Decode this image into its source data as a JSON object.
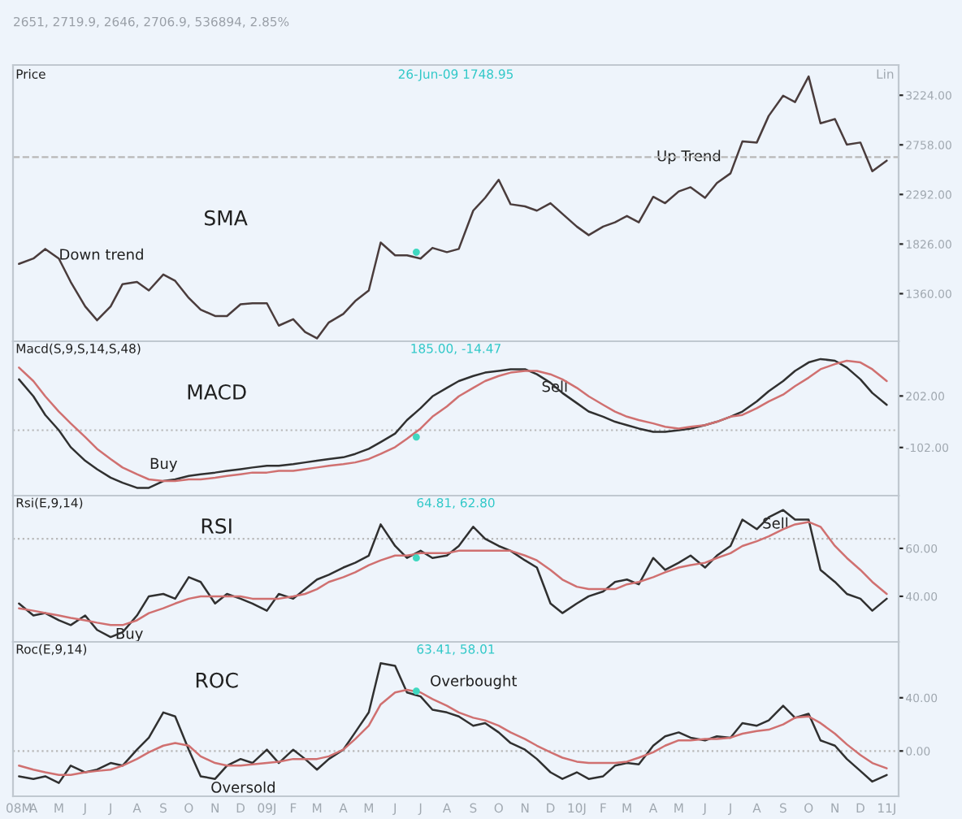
{
  "chart_data": [
    {
      "type": "line",
      "title": "Price",
      "subtitle": "26-Jun-09 1748.95",
      "annotations": [
        "2651, 2719.9, 2646, 2706.9, 536894, 2.85%",
        "Lin",
        "SMA",
        "Down trend",
        {
          "text": "Up Trend",
          "x": "2010-05-13",
          "y": 2643
        }
      ],
      "x": [
        "2008-03-15",
        "2008-04-01",
        "2008-04-15",
        "2008-05-01",
        "2008-05-15",
        "2008-06-01",
        "2008-06-15",
        "2008-07-01",
        "2008-07-15",
        "2008-08-01",
        "2008-08-15",
        "2008-09-01",
        "2008-09-15",
        "2008-10-01",
        "2008-10-15",
        "2008-11-01",
        "2008-11-15",
        "2008-12-01",
        "2008-12-15",
        "2009-01-01",
        "2009-01-15",
        "2009-02-01",
        "2009-02-15",
        "2009-03-01",
        "2009-03-15",
        "2009-04-01",
        "2009-04-15",
        "2009-05-01",
        "2009-05-15",
        "2009-06-01",
        "2009-06-15",
        "2009-07-01",
        "2009-07-15",
        "2009-08-01",
        "2009-08-15",
        "2009-09-01",
        "2009-09-15",
        "2009-10-01",
        "2009-10-15",
        "2009-11-01",
        "2009-11-15",
        "2009-12-01",
        "2009-12-15",
        "2010-01-01",
        "2010-01-15",
        "2010-02-01",
        "2010-02-15",
        "2010-03-01",
        "2010-03-15",
        "2010-04-01",
        "2010-04-15",
        "2010-05-01",
        "2010-05-15",
        "2010-06-01",
        "2010-06-15",
        "2010-07-01",
        "2010-07-15",
        "2010-08-01",
        "2010-08-15",
        "2010-09-01",
        "2010-09-15",
        "2010-10-01",
        "2010-10-15",
        "2010-11-01",
        "2010-11-15",
        "2010-12-01",
        "2010-12-15",
        "2011-01-01"
      ],
      "series": [
        {
          "color": "#4a3c3c",
          "values": [
            1640,
            1690,
            1780,
            1690,
            1470,
            1240,
            1110,
            1240,
            1450,
            1470,
            1390,
            1540,
            1480,
            1320,
            1210,
            1150,
            1150,
            1260,
            1270,
            1270,
            1060,
            1120,
            1000,
            940,
            1090,
            1170,
            1290,
            1390,
            1840,
            1720,
            1720,
            1690,
            1790,
            1750,
            1780,
            2140,
            2260,
            2430,
            2200,
            2180,
            2140,
            2210,
            2110,
            1990,
            1910,
            1990,
            2030,
            2090,
            2030,
            2270,
            2210,
            2320,
            2360,
            2260,
            2400,
            2490,
            2790,
            2780,
            3030,
            3220,
            3160,
            3400,
            2960,
            3000,
            2760,
            2780,
            2510,
            2610
          ]
        },
        {
          "type": "scatter",
          "color": "#40d8c0",
          "x": [
            "2009-06-26"
          ],
          "values": [
            1750
          ]
        }
      ],
      "xlim": [
        "2008-03-08",
        "2011-01-15"
      ],
      "ylim": [
        913,
        3508
      ],
      "yticks": [
        {
          "value": 1360,
          "label": "1360.00"
        },
        {
          "value": 1826,
          "label": "1826.00"
        },
        {
          "value": 2292,
          "label": "2292.00"
        },
        {
          "value": 2758,
          "label": "2758.00"
        },
        {
          "value": 3224,
          "label": "3224.00"
        }
      ],
      "ref_lines": [
        {
          "axis": "y",
          "value": 2643,
          "line_style": "dashed",
          "color": "#b8b8b8"
        }
      ],
      "tick_labels": "y"
    },
    {
      "type": "line",
      "title": "Macd(S,9,S,14,S,48)",
      "subtitle": "185.00, -14.47",
      "annotations": [
        "MACD",
        "Buy",
        {
          "text": "Sell",
          "x": "2009-12-06",
          "y": 251
        }
      ],
      "x": [
        "2008-03-15",
        "2008-04-01",
        "2008-04-15",
        "2008-05-01",
        "2008-05-15",
        "2008-06-01",
        "2008-06-15",
        "2008-07-01",
        "2008-07-15",
        "2008-08-01",
        "2008-08-15",
        "2008-09-01",
        "2008-09-15",
        "2008-10-01",
        "2008-10-15",
        "2008-11-01",
        "2008-11-15",
        "2008-12-01",
        "2008-12-15",
        "2009-01-01",
        "2009-01-15",
        "2009-02-01",
        "2009-02-15",
        "2009-03-01",
        "2009-03-15",
        "2009-04-01",
        "2009-04-15",
        "2009-05-01",
        "2009-05-15",
        "2009-06-01",
        "2009-06-15",
        "2009-07-01",
        "2009-07-15",
        "2009-08-01",
        "2009-08-15",
        "2009-09-01",
        "2009-09-15",
        "2009-10-01",
        "2009-10-15",
        "2009-11-01",
        "2009-11-15",
        "2009-12-01",
        "2009-12-15",
        "2010-01-01",
        "2010-01-15",
        "2010-02-01",
        "2010-02-15",
        "2010-03-01",
        "2010-03-15",
        "2010-04-01",
        "2010-04-15",
        "2010-05-01",
        "2010-05-15",
        "2010-06-01",
        "2010-06-15",
        "2010-07-01",
        "2010-07-15",
        "2010-08-01",
        "2010-08-15",
        "2010-09-01",
        "2010-09-15",
        "2010-10-01",
        "2010-10-15",
        "2010-11-01",
        "2010-11-15",
        "2010-12-01",
        "2010-12-15",
        "2011-01-01"
      ],
      "series": [
        {
          "color": "#303030",
          "values": [
            300,
            200,
            90,
            0,
            -100,
            -180,
            -230,
            -280,
            -310,
            -340,
            -340,
            -300,
            -290,
            -270,
            -260,
            -250,
            -240,
            -230,
            -220,
            -210,
            -210,
            -200,
            -190,
            -180,
            -170,
            -160,
            -140,
            -110,
            -70,
            -20,
            60,
            130,
            200,
            250,
            290,
            320,
            340,
            350,
            360,
            360,
            330,
            280,
            220,
            160,
            110,
            80,
            50,
            30,
            10,
            -10,
            -10,
            0,
            10,
            30,
            50,
            80,
            110,
            170,
            230,
            290,
            350,
            400,
            420,
            410,
            370,
            300,
            220,
            150
          ]
        },
        {
          "color": "#d07070",
          "values": [
            370,
            290,
            200,
            110,
            40,
            -40,
            -110,
            -170,
            -220,
            -260,
            -290,
            -300,
            -300,
            -290,
            -290,
            -280,
            -270,
            -260,
            -250,
            -250,
            -240,
            -240,
            -230,
            -220,
            -210,
            -200,
            -190,
            -170,
            -140,
            -100,
            -50,
            10,
            80,
            140,
            200,
            250,
            290,
            320,
            340,
            350,
            350,
            330,
            300,
            250,
            200,
            150,
            110,
            80,
            60,
            40,
            20,
            10,
            20,
            30,
            50,
            80,
            90,
            130,
            170,
            210,
            260,
            310,
            360,
            390,
            410,
            400,
            360,
            290
          ]
        },
        {
          "type": "scatter",
          "color": "#40d8c0",
          "x": [
            "2009-06-26"
          ],
          "values": [
            -40
          ]
        }
      ],
      "xlim": [
        "2008-03-08",
        "2011-01-15"
      ],
      "ylim": [
        -386,
        525
      ],
      "yticks": [
        {
          "value": -102,
          "label": "-102.00"
        },
        {
          "value": 202,
          "label": "202.00"
        }
      ],
      "ref_lines": [
        {
          "axis": "y",
          "value": 0,
          "line_style": "dotted",
          "color": "#b8b8b8"
        }
      ],
      "tick_labels": "y"
    },
    {
      "type": "line",
      "title": "Rsi(E,9,14)",
      "subtitle": "64.81, 62.80",
      "annotations": [
        "RSI",
        {
          "text": "Buy",
          "x": "2008-07-23",
          "y": 24
        },
        {
          "text": "Sell",
          "x": "2010-08-23",
          "y": 70
        }
      ],
      "x": [
        "2008-03-15",
        "2008-04-01",
        "2008-04-15",
        "2008-05-01",
        "2008-05-15",
        "2008-06-01",
        "2008-06-15",
        "2008-07-01",
        "2008-07-15",
        "2008-08-01",
        "2008-08-15",
        "2008-09-01",
        "2008-09-15",
        "2008-10-01",
        "2008-10-15",
        "2008-11-01",
        "2008-11-15",
        "2008-12-01",
        "2008-12-15",
        "2009-01-01",
        "2009-01-15",
        "2009-02-01",
        "2009-02-15",
        "2009-03-01",
        "2009-03-15",
        "2009-04-01",
        "2009-04-15",
        "2009-05-01",
        "2009-05-15",
        "2009-06-01",
        "2009-06-15",
        "2009-07-01",
        "2009-07-15",
        "2009-08-01",
        "2009-08-15",
        "2009-09-01",
        "2009-09-15",
        "2009-10-01",
        "2009-10-15",
        "2009-11-01",
        "2009-11-15",
        "2009-12-01",
        "2009-12-15",
        "2010-01-01",
        "2010-01-15",
        "2010-02-01",
        "2010-02-15",
        "2010-03-01",
        "2010-03-15",
        "2010-04-01",
        "2010-04-15",
        "2010-05-01",
        "2010-05-15",
        "2010-06-01",
        "2010-06-15",
        "2010-07-01",
        "2010-07-15",
        "2010-08-01",
        "2010-08-15",
        "2010-09-01",
        "2010-09-15",
        "2010-10-01",
        "2010-10-15",
        "2010-11-01",
        "2010-11-15",
        "2010-12-01",
        "2010-12-15",
        "2011-01-01"
      ],
      "series": [
        {
          "color": "#303030",
          "values": [
            37,
            32,
            33,
            30,
            28,
            32,
            26,
            23,
            25,
            32,
            40,
            41,
            39,
            48,
            46,
            37,
            41,
            39,
            37,
            34,
            41,
            39,
            43,
            47,
            49,
            52,
            54,
            57,
            70,
            61,
            56,
            59,
            56,
            57,
            61,
            69,
            64,
            61,
            59,
            55,
            52,
            37,
            33,
            37,
            40,
            42,
            46,
            47,
            45,
            56,
            51,
            54,
            57,
            52,
            57,
            61,
            72,
            68,
            73,
            76,
            72,
            72,
            51,
            46,
            41,
            39,
            34,
            39
          ]
        },
        {
          "color": "#d07070",
          "values": [
            35,
            34,
            33,
            32,
            31,
            30,
            29,
            28,
            28,
            30,
            33,
            35,
            37,
            39,
            40,
            40,
            40,
            40,
            39,
            39,
            39,
            40,
            41,
            43,
            46,
            48,
            50,
            53,
            55,
            57,
            57,
            58,
            58,
            58,
            59,
            59,
            59,
            59,
            59,
            57,
            55,
            51,
            47,
            44,
            43,
            43,
            43,
            45,
            46,
            48,
            50,
            52,
            53,
            54,
            56,
            58,
            61,
            63,
            65,
            68,
            70,
            71,
            69,
            61,
            56,
            51,
            46,
            41
          ]
        },
        {
          "type": "scatter",
          "color": "#40d8c0",
          "x": [
            "2009-06-26"
          ],
          "values": [
            56
          ]
        }
      ],
      "xlim": [
        "2008-03-08",
        "2011-01-15"
      ],
      "ylim": [
        21,
        82
      ],
      "yticks": [
        {
          "value": 40,
          "label": "40.00"
        },
        {
          "value": 60,
          "label": "60.00"
        }
      ],
      "ref_lines": [
        {
          "axis": "y",
          "value": 64,
          "line_style": "dotted",
          "color": "#b8b8b8"
        }
      ],
      "tick_labels": "y"
    },
    {
      "type": "line",
      "title": "Roc(E,9,14)",
      "subtitle": "63.41, 58.01",
      "annotations": [
        "ROC",
        "Overbought",
        "Oversold"
      ],
      "x": [
        "2008-03-15",
        "2008-04-01",
        "2008-04-15",
        "2008-05-01",
        "2008-05-15",
        "2008-06-01",
        "2008-06-15",
        "2008-07-01",
        "2008-07-15",
        "2008-08-01",
        "2008-08-15",
        "2008-09-01",
        "2008-09-15",
        "2008-10-01",
        "2008-10-15",
        "2008-11-01",
        "2008-11-15",
        "2008-12-01",
        "2008-12-15",
        "2009-01-01",
        "2009-01-15",
        "2009-02-01",
        "2009-02-15",
        "2009-03-01",
        "2009-03-15",
        "2009-04-01",
        "2009-04-15",
        "2009-05-01",
        "2009-05-15",
        "2009-06-01",
        "2009-06-15",
        "2009-07-01",
        "2009-07-15",
        "2009-08-01",
        "2009-08-15",
        "2009-09-01",
        "2009-09-15",
        "2009-10-01",
        "2009-10-15",
        "2009-11-01",
        "2009-11-15",
        "2009-12-01",
        "2009-12-15",
        "2010-01-01",
        "2010-01-15",
        "2010-02-01",
        "2010-02-15",
        "2010-03-01",
        "2010-03-15",
        "2010-04-01",
        "2010-04-15",
        "2010-05-01",
        "2010-05-15",
        "2010-06-01",
        "2010-06-15",
        "2010-07-01",
        "2010-07-15",
        "2010-08-01",
        "2010-08-15",
        "2010-09-01",
        "2010-09-15",
        "2010-10-01",
        "2010-10-15",
        "2010-11-01",
        "2010-11-15",
        "2010-12-01",
        "2010-12-15",
        "2011-01-01"
      ],
      "series": [
        {
          "color": "#303030",
          "values": [
            -19,
            -21,
            -19,
            -24,
            -11,
            -16,
            -14,
            -9,
            -11,
            1,
            10,
            29,
            26,
            1,
            -19,
            -21,
            -11,
            -6,
            -9,
            1,
            -9,
            1,
            -6,
            -14,
            -6,
            1,
            14,
            29,
            66,
            64,
            44,
            41,
            31,
            29,
            26,
            19,
            21,
            14,
            6,
            1,
            -6,
            -16,
            -21,
            -16,
            -21,
            -19,
            -11,
            -9,
            -10,
            4,
            11,
            14,
            10,
            8,
            11,
            10,
            21,
            19,
            23,
            34,
            25,
            28,
            8,
            4,
            -6,
            -15,
            -23,
            -18
          ]
        },
        {
          "color": "#d07070",
          "values": [
            -11,
            -14,
            -16,
            -18,
            -18,
            -16,
            -15,
            -14,
            -11,
            -6,
            -1,
            4,
            6,
            4,
            -4,
            -9,
            -11,
            -11,
            -10,
            -9,
            -8,
            -6,
            -6,
            -6,
            -4,
            1,
            9,
            19,
            35,
            44,
            46,
            44,
            39,
            34,
            29,
            25,
            23,
            19,
            14,
            9,
            4,
            -1,
            -5,
            -8,
            -9,
            -9,
            -9,
            -8,
            -5,
            -1,
            4,
            8,
            8,
            9,
            9,
            10,
            13,
            15,
            16,
            20,
            25,
            26,
            21,
            13,
            5,
            -3,
            -9,
            -13
          ]
        },
        {
          "type": "scatter",
          "color": "#40d8c0",
          "x": [
            "2009-06-26"
          ],
          "values": [
            45
          ]
        }
      ],
      "xlim": [
        "2008-03-08",
        "2011-01-15"
      ],
      "ylim": [
        -34,
        82
      ],
      "yticks": [
        {
          "value": 0,
          "label": "0.00"
        },
        {
          "value": 40,
          "label": "40.00"
        }
      ],
      "xticks": [
        {
          "value": "2008-03-15",
          "label": "08M"
        },
        {
          "value": "2008-04-01",
          "label": "A"
        },
        {
          "value": "2008-05-01",
          "label": "M"
        },
        {
          "value": "2008-06-01",
          "label": "J"
        },
        {
          "value": "2008-07-01",
          "label": "J"
        },
        {
          "value": "2008-08-01",
          "label": "A"
        },
        {
          "value": "2008-09-01",
          "label": "S"
        },
        {
          "value": "2008-10-01",
          "label": "O"
        },
        {
          "value": "2008-11-01",
          "label": "N"
        },
        {
          "value": "2008-12-01",
          "label": "D"
        },
        {
          "value": "2009-01-01",
          "label": "09J"
        },
        {
          "value": "2009-02-01",
          "label": "F"
        },
        {
          "value": "2009-03-01",
          "label": "M"
        },
        {
          "value": "2009-04-01",
          "label": "A"
        },
        {
          "value": "2009-05-01",
          "label": "M"
        },
        {
          "value": "2009-06-01",
          "label": "J"
        },
        {
          "value": "2009-07-01",
          "label": "J"
        },
        {
          "value": "2009-08-01",
          "label": "A"
        },
        {
          "value": "2009-09-01",
          "label": "S"
        },
        {
          "value": "2009-10-01",
          "label": "O"
        },
        {
          "value": "2009-11-01",
          "label": "N"
        },
        {
          "value": "2009-12-01",
          "label": "D"
        },
        {
          "value": "2010-01-01",
          "label": "10J"
        },
        {
          "value": "2010-02-01",
          "label": "F"
        },
        {
          "value": "2010-03-01",
          "label": "M"
        },
        {
          "value": "2010-04-01",
          "label": "A"
        },
        {
          "value": "2010-05-01",
          "label": "M"
        },
        {
          "value": "2010-06-01",
          "label": "J"
        },
        {
          "value": "2010-07-01",
          "label": "J"
        },
        {
          "value": "2010-08-01",
          "label": "A"
        },
        {
          "value": "2010-09-01",
          "label": "S"
        },
        {
          "value": "2010-10-01",
          "label": "O"
        },
        {
          "value": "2010-11-01",
          "label": "N"
        },
        {
          "value": "2010-12-01",
          "label": "D"
        },
        {
          "value": "2011-01-01",
          "label": "11J"
        }
      ],
      "ref_lines": [
        {
          "axis": "y",
          "value": 0,
          "line_style": "dotted",
          "color": "#b8b8b8"
        }
      ]
    }
  ]
}
